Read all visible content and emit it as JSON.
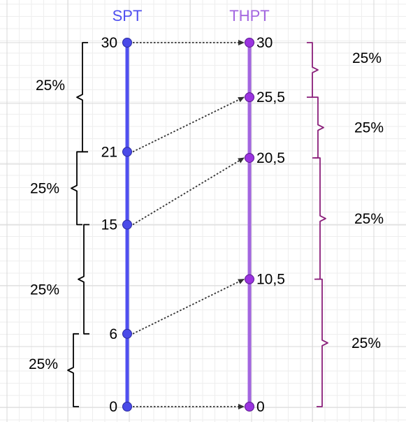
{
  "headers": {
    "left": "SPT",
    "right": "THPT"
  },
  "colors": {
    "left_axis": "#4f4ff0",
    "left_point": "#4a4ae8",
    "right_axis": "#a366e0",
    "right_point": "#9b34e0",
    "right_brace": "#8a1f7a",
    "left_brace": "#000000",
    "arrow": "#333333",
    "grid": "#d8d8d8"
  },
  "left_scale": {
    "points": [
      {
        "value": 30,
        "label": "30"
      },
      {
        "value": 21,
        "label": "21"
      },
      {
        "value": 15,
        "label": "15"
      },
      {
        "value": 6,
        "label": "6"
      },
      {
        "value": 0,
        "label": "0"
      }
    ],
    "braces": [
      {
        "from": 30,
        "to": 21,
        "label": "25%"
      },
      {
        "from": 21,
        "to": 15,
        "label": "25%"
      },
      {
        "from": 15,
        "to": 6,
        "label": "25%"
      },
      {
        "from": 6,
        "to": 0,
        "label": "25%"
      }
    ]
  },
  "right_scale": {
    "points": [
      {
        "value": 30,
        "label": "30"
      },
      {
        "value": 25.5,
        "label": "25,5"
      },
      {
        "value": 20.5,
        "label": "20,5"
      },
      {
        "value": 10.5,
        "label": "10,5"
      },
      {
        "value": 0,
        "label": "0"
      }
    ],
    "braces": [
      {
        "from": 30,
        "to": 25.5,
        "label": "25%"
      },
      {
        "from": 25.5,
        "to": 20.5,
        "label": "25%"
      },
      {
        "from": 20.5,
        "to": 10.5,
        "label": "25%"
      },
      {
        "from": 10.5,
        "to": 0,
        "label": "25%"
      }
    ]
  },
  "mappings": [
    {
      "from": 30,
      "to": 30
    },
    {
      "from": 21,
      "to": 25.5
    },
    {
      "from": 15,
      "to": 20.5
    },
    {
      "from": 6,
      "to": 10.5
    },
    {
      "from": 0,
      "to": 0
    }
  ]
}
